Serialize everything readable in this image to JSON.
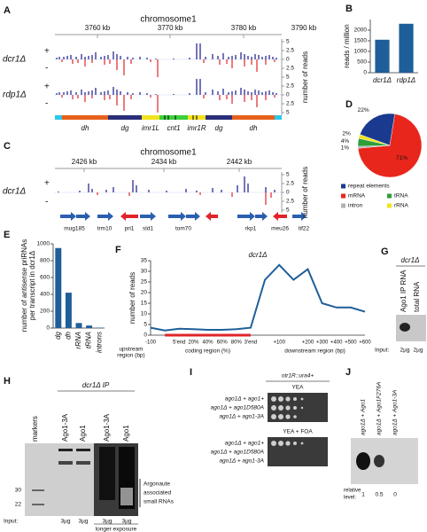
{
  "panels": {
    "A": {
      "label": "A",
      "title": "chromosome1",
      "positions": [
        "3760 kb",
        "3770 kb",
        "3780 kb",
        "3790 kb"
      ],
      "tracks": [
        {
          "name": "dcr1Δ",
          "plus": "+",
          "minus": "-"
        },
        {
          "name": "rdp1Δ",
          "plus": "+",
          "minus": "-"
        }
      ],
      "scale": [
        "5",
        "2.5",
        "0",
        "2.5",
        "5",
        "2.5",
        "0",
        "2.5",
        "5"
      ],
      "scale_label": "number of reads",
      "features": [
        "dh",
        "dg",
        "imr1L",
        "cnt1",
        "imr1R",
        "dg",
        "dh"
      ]
    },
    "C": {
      "label": "C",
      "title": "chromosome1",
      "positions": [
        "2426 kb",
        "2434 kb",
        "2442 kb"
      ],
      "track": {
        "name": "dcr1Δ",
        "plus": "+",
        "minus": "-"
      },
      "scale": [
        "5",
        "2.5",
        "0",
        "2.5",
        "5"
      ],
      "scale_label": "number of reads",
      "genes": [
        "mug185",
        "trm10",
        "pri1",
        "sld1",
        "tom70",
        "rkp1",
        "meu26",
        "tif22"
      ]
    },
    "G": {
      "label": "G",
      "strain": "dcr1Δ",
      "lanes": [
        "Ago1 IP RNA",
        "total RNA"
      ],
      "input_label": "Input:",
      "inputs": [
        "2µg",
        "2µg"
      ]
    },
    "H": {
      "label": "H",
      "ip": "dcr1Δ IP",
      "lanes": [
        "markers",
        "Ago1-3A",
        "Ago1",
        "Ago1-3A",
        "Ago1"
      ],
      "markers": [
        "30",
        "22"
      ],
      "annotation": [
        "Argonaute",
        "associated",
        "small RNAs"
      ],
      "input_label": "Input:",
      "inputs": [
        "3µg",
        "3µg",
        "3µg",
        "3µg"
      ],
      "note": "longer exposure"
    },
    "I": {
      "label": "I",
      "reporter": "otr1R::ura4+",
      "plates": [
        {
          "medium": "YEA",
          "strains": [
            "ago1Δ + ago1+",
            "ago1Δ + ago1D580A",
            "ago1Δ + ago1-3A"
          ]
        },
        {
          "medium": "YEA + FOA",
          "strains": [
            "ago1Δ + ago1+",
            "ago1Δ + ago1D580A",
            "ago1Δ + ago1-3A"
          ]
        }
      ]
    },
    "J": {
      "label": "J",
      "lanes": [
        "ago1Δ + Ago1",
        "ago1Δ + Ago1F276A",
        "ago1Δ + Ago1-3A"
      ],
      "level_label": [
        "relative",
        "level:"
      ],
      "levels": [
        "1",
        "0.5",
        "0"
      ]
    }
  },
  "chart_data": [
    {
      "panel_label": "B",
      "type": "bar",
      "categories": [
        "dcr1Δ",
        "rdp1Δ"
      ],
      "values": [
        1550,
        2300
      ],
      "color": "#1f5f99",
      "ylabel": "reads / million",
      "ylim": [
        0,
        2500
      ],
      "yticks": [
        0,
        500,
        1000,
        1500,
        2000
      ]
    },
    {
      "panel_label": "D",
      "type": "pie",
      "categories": [
        "repeat elements",
        "mRNA",
        "intron",
        "tRNA",
        "rRNA"
      ],
      "values": [
        22,
        71,
        1,
        4,
        2
      ],
      "value_labels": [
        "22%",
        "71%",
        "1%",
        "4%",
        "2%"
      ],
      "colors": [
        "#1a3a8f",
        "#e8261c",
        "#b0b0b0",
        "#2e9e3a",
        "#f2e21e"
      ]
    },
    {
      "panel_label": "E",
      "type": "bar",
      "categories": [
        "dg",
        "dh",
        "rRNA",
        "tRNA",
        "introns"
      ],
      "values": [
        950,
        420,
        60,
        30,
        5
      ],
      "color": "#1f5f99",
      "ylabel": [
        "number of antisense priRNAs",
        "per transcript in dcr1Δ"
      ],
      "ylim": [
        0,
        1000
      ],
      "yticks": [
        0,
        200,
        400,
        600,
        800,
        1000
      ]
    },
    {
      "panel_label": "F",
      "type": "line",
      "title": "dcr1Δ",
      "categories": [
        "-100",
        null,
        "5'end",
        "20%",
        "40%",
        "60%",
        "80%",
        "3'end",
        null,
        "+100",
        null,
        "+200",
        "+300",
        "+400",
        "+500",
        "+600"
      ],
      "values": [
        3.5,
        2.2,
        3,
        2.8,
        2.5,
        2.5,
        2.8,
        3.5,
        26,
        33,
        26,
        31,
        15,
        13,
        13,
        11
      ],
      "color": "#1f5f99",
      "ylabel": "number of reads",
      "ylim": [
        0,
        35
      ],
      "yticks": [
        0,
        5,
        10,
        15,
        20,
        25,
        30,
        35
      ],
      "annotations": [
        "upstream",
        "region (bp)",
        "coding region (%)",
        "downstream region (bp)"
      ]
    }
  ]
}
